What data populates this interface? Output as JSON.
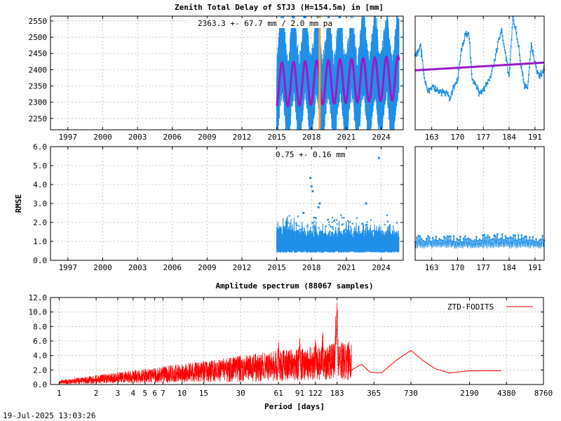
{
  "timestamp": "19-Jul-2025 13:03:26",
  "colors": {
    "data": "#1f8fe8",
    "fit": "#9a1ac8",
    "vline": "#f0a040",
    "spectrum": "#ff0000"
  },
  "chart_data": [
    {
      "id": "ztd-long",
      "type": "scatter",
      "title": "Zenith Total Delay of STJ3 (H=154.5m) in [mm]",
      "annotation": "2363.3 +-  67.7 mm /  2.0 mm pa",
      "xlabel": "",
      "ylabel": "",
      "xlim": [
        1995.5,
        2025.9
      ],
      "ylim": [
        2215,
        2565
      ],
      "x_ticks": [
        1997,
        2000,
        2003,
        2006,
        2009,
        2012,
        2015,
        2018,
        2021,
        2024
      ],
      "y_ticks": [
        2250,
        2300,
        2350,
        2400,
        2450,
        2500,
        2550
      ],
      "data_start": 2015.0,
      "data_end": 2025.55,
      "mean": 2363.3,
      "amplitude": 67.7,
      "trend_mm_per_year": 2.0,
      "vertical_line_x": 2018.7,
      "grid": true
    },
    {
      "id": "ztd-recent",
      "type": "line",
      "xlim": [
        158.5,
        193.5
      ],
      "ylim": [
        2215,
        2565
      ],
      "x_ticks": [
        163,
        170,
        177,
        184,
        191
      ],
      "fit_start": 2398,
      "fit_end": 2422,
      "grid": true
    },
    {
      "id": "rmse-long",
      "type": "scatter",
      "annotation": "0.75 +-  0.16 mm",
      "ylabel": "RMSE",
      "xlim": [
        1995.5,
        2025.9
      ],
      "ylim": [
        0.0,
        6.0
      ],
      "x_ticks": [
        1997,
        2000,
        2003,
        2006,
        2009,
        2012,
        2015,
        2018,
        2021,
        2024
      ],
      "y_ticks": [
        "0.0",
        "1.0",
        "2.0",
        "3.0",
        "4.0",
        "5.0",
        "6.0"
      ],
      "mean": 0.75,
      "std": 0.16,
      "outliers": [
        {
          "x": 2017.9,
          "y": 4.35
        },
        {
          "x": 2018.0,
          "y": 3.9
        },
        {
          "x": 2018.1,
          "y": 3.65
        },
        {
          "x": 2018.7,
          "y": 3.0
        },
        {
          "x": 2018.6,
          "y": 2.8
        },
        {
          "x": 2022.7,
          "y": 3.0
        },
        {
          "x": 2023.8,
          "y": 5.4
        },
        {
          "x": 2017.3,
          "y": 2.5
        },
        {
          "x": 2019.8,
          "y": 1.75
        }
      ],
      "grid": true
    },
    {
      "id": "rmse-recent",
      "type": "line",
      "xlim": [
        158.5,
        193.5
      ],
      "ylim": [
        0.0,
        6.0
      ],
      "x_ticks": [
        163,
        170,
        177,
        184,
        191
      ],
      "grid": true
    },
    {
      "id": "spectrum",
      "type": "line",
      "title": "Amplitude spectrum (88067 samples)",
      "xlabel": "Period [days]",
      "x_scale": "log",
      "xlim": [
        0.85,
        8760
      ],
      "ylim": [
        0.0,
        12.0
      ],
      "x_ticks": [
        1,
        2,
        3,
        4,
        5,
        6,
        7,
        10,
        15,
        30,
        61,
        91,
        122,
        183,
        365,
        730,
        2190,
        4380,
        8760
      ],
      "y_ticks": [
        "0.0",
        "2.0",
        "4.0",
        "6.0",
        "8.0",
        "10.0",
        "12.0"
      ],
      "series": [
        {
          "name": "ZTD-FODITS"
        }
      ],
      "smooth_curve": [
        {
          "x": 240,
          "y": 2.0
        },
        {
          "x": 290,
          "y": 2.8
        },
        {
          "x": 340,
          "y": 1.7
        },
        {
          "x": 420,
          "y": 1.6
        },
        {
          "x": 560,
          "y": 3.4
        },
        {
          "x": 730,
          "y": 4.7
        },
        {
          "x": 900,
          "y": 3.4
        },
        {
          "x": 1150,
          "y": 2.2
        },
        {
          "x": 1500,
          "y": 1.6
        },
        {
          "x": 2190,
          "y": 1.9
        },
        {
          "x": 4000,
          "y": 1.9
        }
      ],
      "peaks": [
        {
          "x": 183,
          "y": 11.7
        },
        {
          "x": 178,
          "y": 8.5
        },
        {
          "x": 140,
          "y": 5.3
        },
        {
          "x": 122,
          "y": 4.4
        },
        {
          "x": 91,
          "y": 6.3
        },
        {
          "x": 61,
          "y": 5.0
        }
      ],
      "legend_position": "top-right",
      "grid": true
    }
  ]
}
